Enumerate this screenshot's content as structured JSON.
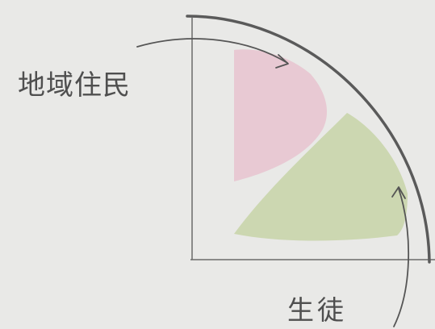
{
  "labels": {
    "residents": "地域住民",
    "students": "生徒"
  },
  "colors": {
    "background": "#e9e9e7",
    "line": "#5a5a5a",
    "residents_region": "#e7c3cf",
    "students_region": "#c7d3a7",
    "text": "#4f4f4f"
  }
}
